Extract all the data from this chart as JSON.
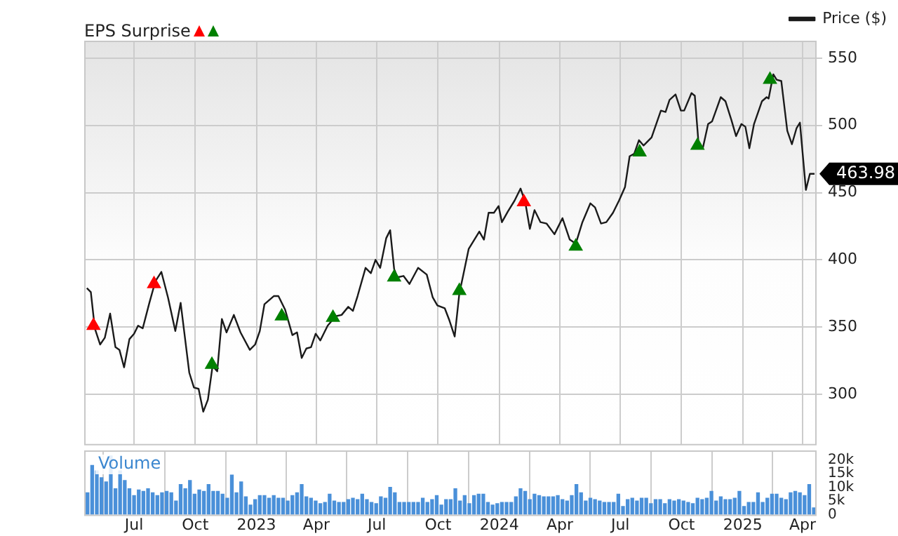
{
  "chart_data": [
    {
      "type": "line",
      "legend_title": "EPS Surprise",
      "legend": "top right",
      "grid": true,
      "tick_labels": "y",
      "xlim": [
        "2022-04-17",
        "2025-04-20"
      ],
      "xticks": [
        {
          "value": "2022-07-01",
          "label": null
        },
        {
          "value": "2022-10-01",
          "label": null
        },
        {
          "value": "2023-01-01",
          "label": null
        },
        {
          "value": "2023-04-01",
          "label": null
        },
        {
          "value": "2023-07-01",
          "label": null
        },
        {
          "value": "2023-10-01",
          "label": null
        },
        {
          "value": "2024-01-01",
          "label": null
        },
        {
          "value": "2024-04-01",
          "label": null
        },
        {
          "value": "2024-07-01",
          "label": null
        },
        {
          "value": "2024-10-01",
          "label": null
        },
        {
          "value": "2025-01-01",
          "label": null
        },
        {
          "value": "2025-04-01",
          "label": null
        }
      ],
      "ylim": [
        263,
        563
      ],
      "yticks": [
        300,
        350,
        400,
        450,
        500,
        550
      ],
      "annotations": [
        {
          "text": "463.98",
          "x": "2025-04-19",
          "y": 463.98
        }
      ],
      "series": [
        {
          "name": "Price ($)",
          "color": "#1a1a1a",
          "marker": "none",
          "line_style": "solid",
          "x": [
            "2022-04-21",
            "2022-04-27",
            "2022-05-03",
            "2022-05-11",
            "2022-05-18",
            "2022-05-26",
            "2022-06-03",
            "2022-06-09",
            "2022-06-16",
            "2022-06-24",
            "2022-07-01",
            "2022-07-07",
            "2022-07-14",
            "2022-07-24",
            "2022-08-02",
            "2022-08-11",
            "2022-08-21",
            "2022-09-01",
            "2022-09-09",
            "2022-09-15",
            "2022-09-22",
            "2022-09-29",
            "2022-10-06",
            "2022-10-13",
            "2022-10-20",
            "2022-10-27",
            "2022-11-03",
            "2022-11-10",
            "2022-11-17",
            "2022-11-28",
            "2022-12-08",
            "2022-12-22",
            "2022-12-30",
            "2023-01-06",
            "2023-01-13",
            "2023-01-27",
            "2023-02-03",
            "2023-02-13",
            "2023-02-24",
            "2023-03-03",
            "2023-03-10",
            "2023-03-17",
            "2023-03-24",
            "2023-03-31",
            "2023-04-07",
            "2023-04-18",
            "2023-04-30",
            "2023-05-09",
            "2023-05-19",
            "2023-05-26",
            "2023-06-02",
            "2023-06-14",
            "2023-06-22",
            "2023-06-29",
            "2023-07-06",
            "2023-07-15",
            "2023-07-21",
            "2023-07-27",
            "2023-08-01",
            "2023-08-10",
            "2023-08-19",
            "2023-09-01",
            "2023-09-14",
            "2023-09-23",
            "2023-09-30",
            "2023-10-11",
            "2023-10-18",
            "2023-10-26",
            "2023-11-02",
            "2023-11-08",
            "2023-11-16",
            "2023-12-02",
            "2023-12-09",
            "2023-12-16",
            "2023-12-24",
            "2023-12-31",
            "2024-01-05",
            "2024-01-14",
            "2024-01-24",
            "2024-02-02",
            "2024-02-09",
            "2024-02-16",
            "2024-02-23",
            "2024-03-03",
            "2024-03-12",
            "2024-03-24",
            "2024-04-05",
            "2024-04-16",
            "2024-04-25",
            "2024-05-05",
            "2024-05-17",
            "2024-05-24",
            "2024-06-02",
            "2024-06-10",
            "2024-06-20",
            "2024-06-29",
            "2024-07-08",
            "2024-07-15",
            "2024-07-22",
            "2024-07-29",
            "2024-08-05",
            "2024-08-17",
            "2024-08-31",
            "2024-09-07",
            "2024-09-13",
            "2024-09-22",
            "2024-09-30",
            "2024-10-05",
            "2024-10-16",
            "2024-10-21",
            "2024-10-27",
            "2024-11-02",
            "2024-11-10",
            "2024-11-16",
            "2024-11-29",
            "2024-12-06",
            "2024-12-15",
            "2024-12-22",
            "2024-12-30",
            "2025-01-05",
            "2025-01-11",
            "2025-01-18",
            "2025-01-30",
            "2025-02-06",
            "2025-02-09",
            "2025-02-16",
            "2025-02-21",
            "2025-02-28",
            "2025-03-09",
            "2025-03-16",
            "2025-03-23",
            "2025-03-28",
            "2025-04-06",
            "2025-04-12",
            "2025-04-19"
          ],
          "values": [
            379,
            376,
            349,
            337,
            342,
            360,
            335,
            333,
            320,
            341,
            345,
            351,
            349,
            368,
            384,
            391,
            372,
            347,
            368,
            344,
            316,
            305,
            304,
            287,
            296,
            321,
            317,
            356,
            346,
            359,
            346,
            333,
            337,
            347,
            367,
            373,
            373,
            363,
            344,
            346,
            327,
            334,
            335,
            345,
            340,
            351,
            358,
            359,
            365,
            362,
            373,
            394,
            390,
            400,
            394,
            416,
            422,
            393,
            387,
            388,
            382,
            394,
            389,
            372,
            366,
            364,
            355,
            343,
            375,
            389,
            408,
            421,
            415,
            435,
            435,
            440,
            428,
            436,
            444,
            453,
            443,
            423,
            437,
            428,
            427,
            419,
            431,
            415,
            412,
            428,
            442,
            439,
            427,
            428,
            435,
            444,
            454,
            477,
            479,
            489,
            485,
            491,
            511,
            510,
            519,
            523,
            511,
            511,
            524,
            522,
            484,
            483,
            501,
            503,
            521,
            518,
            504,
            492,
            501,
            499,
            483,
            501,
            518,
            521,
            520,
            538,
            534,
            533,
            496,
            486,
            498,
            502,
            452,
            464,
            463.98
          ]
        },
        {
          "type": "scatter",
          "color": "#ff0000",
          "marker": "triangle",
          "x": [
            "2022-05-01",
            "2022-07-31",
            "2024-02-07"
          ],
          "values": [
            351,
            382,
            443
          ]
        },
        {
          "type": "scatter",
          "color": "#008000",
          "marker": "triangle",
          "x": [
            "2022-10-26",
            "2023-02-08",
            "2023-04-26",
            "2023-07-27",
            "2023-11-02",
            "2024-04-25",
            "2024-07-30",
            "2024-10-25",
            "2025-02-11"
          ],
          "values": [
            322,
            358,
            357,
            387,
            377,
            410,
            480,
            485,
            534
          ]
        }
      ]
    },
    {
      "type": "bar",
      "ylabel": "Volume",
      "grid": "x",
      "xlim": [
        "2022-04-17",
        "2025-04-20"
      ],
      "xticks": [
        {
          "value": "2022-07-01",
          "label": "Jul"
        },
        {
          "value": "2022-10-01",
          "label": "Oct"
        },
        {
          "value": "2023-01-01",
          "label": "2023"
        },
        {
          "value": "2023-04-01",
          "label": "Apr"
        },
        {
          "value": "2023-07-01",
          "label": "Jul"
        },
        {
          "value": "2023-10-01",
          "label": "Oct"
        },
        {
          "value": "2024-01-01",
          "label": "2024"
        },
        {
          "value": "2024-04-01",
          "label": "Apr"
        },
        {
          "value": "2024-07-01",
          "label": "Jul"
        },
        {
          "value": "2024-10-01",
          "label": "Oct"
        },
        {
          "value": "2025-01-01",
          "label": "2025"
        },
        {
          "value": "2025-04-01",
          "label": "Apr"
        }
      ],
      "ylim": [
        0,
        23500
      ],
      "yticks": [
        0,
        {
          "value": 5000,
          "label": "5k"
        },
        {
          "value": 10000,
          "label": "10k"
        },
        {
          "value": 15000,
          "label": "15k"
        },
        {
          "value": 20000,
          "label": "20k"
        }
      ],
      "series": [
        {
          "color": "#4a90d9",
          "x": [
            "2022-04-22",
            "2022-04-29",
            "2022-05-06",
            "2022-05-13",
            "2022-05-20",
            "2022-05-27",
            "2022-06-03",
            "2022-06-10",
            "2022-06-17",
            "2022-06-24",
            "2022-07-01",
            "2022-07-08",
            "2022-07-15",
            "2022-07-22",
            "2022-07-29",
            "2022-08-05",
            "2022-08-12",
            "2022-08-19",
            "2022-08-26",
            "2022-09-02",
            "2022-09-09",
            "2022-09-16",
            "2022-09-23",
            "2022-09-30",
            "2022-10-07",
            "2022-10-14",
            "2022-10-21",
            "2022-10-28",
            "2022-11-04",
            "2022-11-11",
            "2022-11-18",
            "2022-11-25",
            "2022-12-02",
            "2022-12-09",
            "2022-12-16",
            "2022-12-23",
            "2022-12-30",
            "2023-01-06",
            "2023-01-13",
            "2023-01-20",
            "2023-01-27",
            "2023-02-03",
            "2023-02-10",
            "2023-02-17",
            "2023-02-24",
            "2023-03-03",
            "2023-03-10",
            "2023-03-17",
            "2023-03-24",
            "2023-03-31",
            "2023-04-07",
            "2023-04-14",
            "2023-04-21",
            "2023-04-28",
            "2023-05-05",
            "2023-05-12",
            "2023-05-19",
            "2023-05-26",
            "2023-06-02",
            "2023-06-09",
            "2023-06-16",
            "2023-06-23",
            "2023-06-30",
            "2023-07-07",
            "2023-07-14",
            "2023-07-21",
            "2023-07-28",
            "2023-08-04",
            "2023-08-11",
            "2023-08-18",
            "2023-08-25",
            "2023-09-01",
            "2023-09-08",
            "2023-09-15",
            "2023-09-22",
            "2023-09-29",
            "2023-10-06",
            "2023-10-13",
            "2023-10-20",
            "2023-10-27",
            "2023-11-03",
            "2023-11-10",
            "2023-11-17",
            "2023-11-24",
            "2023-12-01",
            "2023-12-08",
            "2023-12-15",
            "2023-12-22",
            "2023-12-29",
            "2024-01-05",
            "2024-01-12",
            "2024-01-19",
            "2024-01-26",
            "2024-02-02",
            "2024-02-09",
            "2024-02-16",
            "2024-02-23",
            "2024-03-01",
            "2024-03-08",
            "2024-03-15",
            "2024-03-22",
            "2024-03-29",
            "2024-04-05",
            "2024-04-12",
            "2024-04-19",
            "2024-04-26",
            "2024-05-03",
            "2024-05-10",
            "2024-05-17",
            "2024-05-24",
            "2024-05-31",
            "2024-06-07",
            "2024-06-14",
            "2024-06-21",
            "2024-06-28",
            "2024-07-05",
            "2024-07-12",
            "2024-07-19",
            "2024-07-26",
            "2024-08-02",
            "2024-08-09",
            "2024-08-16",
            "2024-08-23",
            "2024-08-30",
            "2024-09-06",
            "2024-09-13",
            "2024-09-20",
            "2024-09-27",
            "2024-10-04",
            "2024-10-11",
            "2024-10-18",
            "2024-10-25",
            "2024-11-01",
            "2024-11-08",
            "2024-11-15",
            "2024-11-22",
            "2024-11-29",
            "2024-12-06",
            "2024-12-13",
            "2024-12-20",
            "2024-12-27",
            "2025-01-03",
            "2025-01-10",
            "2025-01-17",
            "2025-01-24",
            "2025-01-31",
            "2025-02-07",
            "2025-02-14",
            "2025-02-21",
            "2025-02-28",
            "2025-03-07",
            "2025-03-14",
            "2025-03-21",
            "2025-03-28",
            "2025-04-04",
            "2025-04-11",
            "2025-04-18"
          ],
          "values": [
            8000,
            18000,
            16000,
            13500,
            12000,
            21500,
            9500,
            16000,
            12500,
            9500,
            7000,
            9000,
            8500,
            9500,
            8000,
            7000,
            8000,
            8500,
            8000,
            5000,
            11000,
            9500,
            12500,
            7500,
            9000,
            8500,
            11000,
            8500,
            8500,
            7500,
            6000,
            14500,
            8000,
            12000,
            6500,
            3500,
            5500,
            7000,
            7000,
            6000,
            7000,
            6000,
            6000,
            5000,
            7000,
            8000,
            11000,
            6500,
            6000,
            5000,
            4000,
            4500,
            7500,
            5000,
            4500,
            4500,
            5500,
            6000,
            5500,
            7500,
            5500,
            4500,
            4000,
            6500,
            6000,
            10000,
            8000,
            4500,
            4500,
            4500,
            4500,
            4500,
            6000,
            4500,
            5500,
            7000,
            3500,
            5500,
            5500,
            9500,
            5000,
            7000,
            4000,
            7000,
            7500,
            7500,
            4500,
            3500,
            4000,
            4500,
            4500,
            4500,
            6500,
            9500,
            8500,
            5500,
            7500,
            7000,
            6500,
            6500,
            6500,
            7000,
            5500,
            5000,
            7000,
            11000,
            8000,
            5000,
            6000,
            5500,
            5000,
            4500,
            4500,
            4500,
            7500,
            3000,
            5500,
            6000,
            5000,
            6000,
            6000,
            4000,
            5500,
            5500,
            4000,
            5500,
            5000,
            5500,
            5000,
            4500,
            4000,
            6000,
            5500,
            6000,
            8500,
            5000,
            6500,
            5500,
            5500,
            6000,
            8500,
            3000,
            4500,
            4500,
            8000,
            4500,
            6000,
            7500,
            7500,
            6000,
            5500,
            8000,
            8500,
            8000,
            7000,
            11000,
            2500
          ]
        }
      ]
    }
  ]
}
